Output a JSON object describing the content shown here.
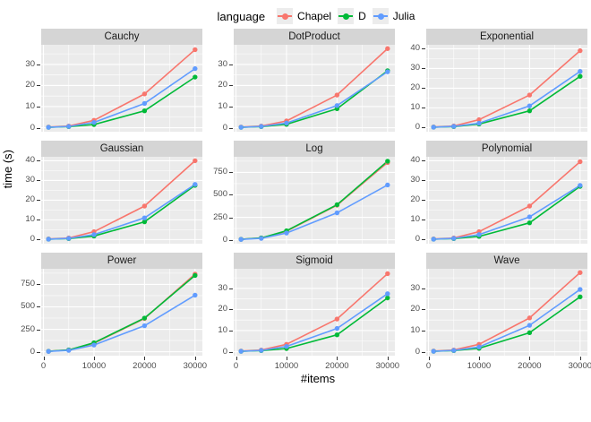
{
  "legend": {
    "title": "language",
    "items": [
      {
        "label": "Chapel",
        "color": "#F8766D"
      },
      {
        "label": "D",
        "color": "#00BA38"
      },
      {
        "label": "Julia",
        "color": "#619CFF"
      }
    ]
  },
  "axes": {
    "x_title": "#items",
    "y_title": "time (s)"
  },
  "theme": {
    "panel_bg": "#EBEBEB",
    "strip_bg": "#D5D5D5",
    "grid_major": "#FFFFFF",
    "grid_minor": "#F7F7F7",
    "tick_text": "#4D4D4D"
  },
  "chart_data": {
    "type": "line",
    "x": [
      1000,
      5000,
      10000,
      20000,
      30000
    ],
    "x_ticks": [
      0,
      10000,
      20000,
      30000
    ],
    "x_minor": [
      5000,
      15000,
      25000
    ],
    "xlim": [
      -450,
      31450
    ],
    "xlabel": "#items",
    "ylabel": "time (s)",
    "series_names": [
      "Chapel",
      "D",
      "Julia"
    ],
    "colors": {
      "Chapel": "#F8766D",
      "D": "#00BA38",
      "Julia": "#619CFF"
    },
    "panels": [
      {
        "title": "Cauchy",
        "yticks": [
          0,
          10,
          20,
          30
        ],
        "ylim": [
          -1.9,
          39.3
        ],
        "series": [
          {
            "name": "Chapel",
            "values": [
              0.3,
              0.8,
              3.5,
              16,
              37
            ]
          },
          {
            "name": "D",
            "values": [
              0.2,
              0.5,
              1.5,
              8,
              24
            ]
          },
          {
            "name": "Julia",
            "values": [
              0.2,
              0.6,
              2.5,
              11.5,
              28
            ]
          }
        ]
      },
      {
        "title": "DotProduct",
        "yticks": [
          0,
          10,
          20,
          30
        ],
        "ylim": [
          -1.9,
          39.3
        ],
        "series": [
          {
            "name": "Chapel",
            "values": [
              0.3,
              0.8,
              3.2,
              15.5,
              37.5
            ]
          },
          {
            "name": "D",
            "values": [
              0.2,
              0.5,
              1.6,
              9,
              27
            ]
          },
          {
            "name": "Julia",
            "values": [
              0.2,
              0.6,
              2.2,
              10.5,
              26.5
            ]
          }
        ]
      },
      {
        "title": "Exponential",
        "yticks": [
          0,
          10,
          20,
          30,
          40
        ],
        "ylim": [
          -2.1,
          42
        ],
        "series": [
          {
            "name": "Chapel",
            "values": [
              0.3,
              0.8,
              4,
              16.5,
              39
            ]
          },
          {
            "name": "D",
            "values": [
              0.2,
              0.5,
              1.8,
              8.5,
              26
            ]
          },
          {
            "name": "Julia",
            "values": [
              0.2,
              0.6,
              2.2,
              11,
              28.5
            ]
          }
        ]
      },
      {
        "title": "Gaussian",
        "yticks": [
          0,
          10,
          20,
          30,
          40
        ],
        "ylim": [
          -2.1,
          42
        ],
        "series": [
          {
            "name": "Chapel",
            "values": [
              0.3,
              0.8,
              4,
              17,
              40
            ]
          },
          {
            "name": "D",
            "values": [
              0.2,
              0.5,
              1.8,
              9,
              27.5
            ]
          },
          {
            "name": "Julia",
            "values": [
              0.2,
              0.6,
              2.5,
              11,
              28
            ]
          }
        ]
      },
      {
        "title": "Log",
        "yticks": [
          0,
          250,
          500,
          750
        ],
        "ylim": [
          -44,
          924
        ],
        "series": [
          {
            "name": "Chapel",
            "values": [
              5,
              20,
              95,
              385,
              860
            ]
          },
          {
            "name": "D",
            "values": [
              5,
              20,
              100,
              390,
              875
            ]
          },
          {
            "name": "Julia",
            "values": [
              4,
              15,
              75,
              300,
              610
            ]
          }
        ]
      },
      {
        "title": "Polynomial",
        "yticks": [
          0,
          10,
          20,
          30,
          40
        ],
        "ylim": [
          -2.1,
          42
        ],
        "series": [
          {
            "name": "Chapel",
            "values": [
              0.3,
              0.8,
              4,
              17,
              39.5
            ]
          },
          {
            "name": "D",
            "values": [
              0.2,
              0.5,
              1.6,
              8.5,
              27
            ]
          },
          {
            "name": "Julia",
            "values": [
              0.2,
              0.6,
              2.5,
              11.5,
              27.5
            ]
          }
        ]
      },
      {
        "title": "Power",
        "yticks": [
          0,
          250,
          500,
          750
        ],
        "ylim": [
          -44,
          924
        ],
        "series": [
          {
            "name": "Chapel",
            "values": [
              5,
              20,
              95,
              370,
              865
            ]
          },
          {
            "name": "D",
            "values": [
              5,
              20,
              100,
              375,
              850
            ]
          },
          {
            "name": "Julia",
            "values": [
              4,
              15,
              75,
              290,
              630
            ]
          }
        ]
      },
      {
        "title": "Sigmoid",
        "yticks": [
          0,
          10,
          20,
          30
        ],
        "ylim": [
          -1.9,
          39.3
        ],
        "series": [
          {
            "name": "Chapel",
            "values": [
              0.3,
              0.8,
              3.5,
              15.5,
              37
            ]
          },
          {
            "name": "D",
            "values": [
              0.2,
              0.5,
              1.5,
              8,
              25.5
            ]
          },
          {
            "name": "Julia",
            "values": [
              0.2,
              0.6,
              2.5,
              11,
              27.5
            ]
          }
        ]
      },
      {
        "title": "Wave",
        "yticks": [
          0,
          10,
          20,
          30
        ],
        "ylim": [
          -1.9,
          39.3
        ],
        "series": [
          {
            "name": "Chapel",
            "values": [
              0.3,
              0.8,
              3.5,
              16,
              37.5
            ]
          },
          {
            "name": "D",
            "values": [
              0.2,
              0.5,
              1.6,
              9,
              26
            ]
          },
          {
            "name": "Julia",
            "values": [
              0.2,
              0.6,
              2.2,
              12.5,
              29.5
            ]
          }
        ]
      }
    ]
  }
}
